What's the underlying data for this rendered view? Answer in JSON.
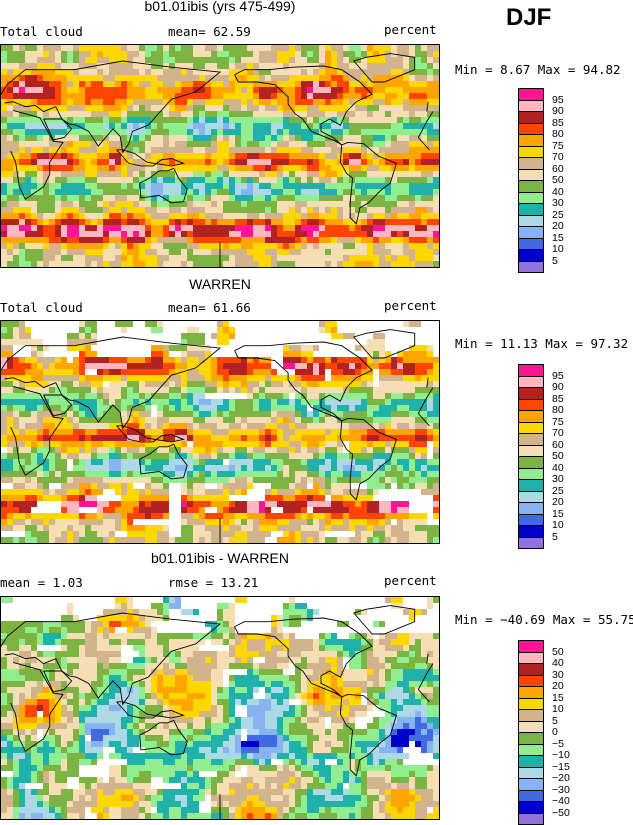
{
  "season": "DJF",
  "colors": [
    "#9370db",
    "#0000cd",
    "#4169e1",
    "#87b4f0",
    "#add8e6",
    "#20b2aa",
    "#90ee90",
    "#7cb342",
    "#f5deb3",
    "#d2b48c",
    "#ffd700",
    "#ffa500",
    "#ff4500",
    "#b22222",
    "#ffb6c1",
    "#ff1493"
  ],
  "panels": [
    {
      "title": "b01.01ibis (yrs 475-499)",
      "left_label": "Total cloud",
      "mean_text": "mean=  62.59",
      "units": "percent",
      "minmax": "Min =   8.67 Max =  94.82",
      "legend_labels": [
        "95",
        "90",
        "85",
        "80",
        "75",
        "70",
        "60",
        "50",
        "40",
        "30",
        "25",
        "20",
        "15",
        "10",
        "5"
      ],
      "has_missing": false,
      "kind": "model"
    },
    {
      "title": "WARREN",
      "left_label": "Total cloud",
      "mean_text": "mean=  61.66",
      "units": "percent",
      "minmax": "Min =  11.13 Max =  97.32",
      "legend_labels": [
        "95",
        "90",
        "85",
        "80",
        "75",
        "70",
        "60",
        "50",
        "40",
        "30",
        "25",
        "20",
        "15",
        "10",
        "5"
      ],
      "has_missing": true,
      "kind": "obs"
    },
    {
      "title": "b01.01ibis - WARREN",
      "left_label": "mean =   1.03",
      "mean_text": "rmse =  13.21",
      "units": "percent",
      "minmax": "Min = −40.69 Max =  55.75",
      "legend_labels": [
        "50",
        "40",
        "30",
        "20",
        "15",
        "10",
        "5",
        "0",
        "−5",
        "−10",
        "−15",
        "−20",
        "−30",
        "−40",
        "−50"
      ],
      "has_missing": true,
      "kind": "diff"
    }
  ]
}
